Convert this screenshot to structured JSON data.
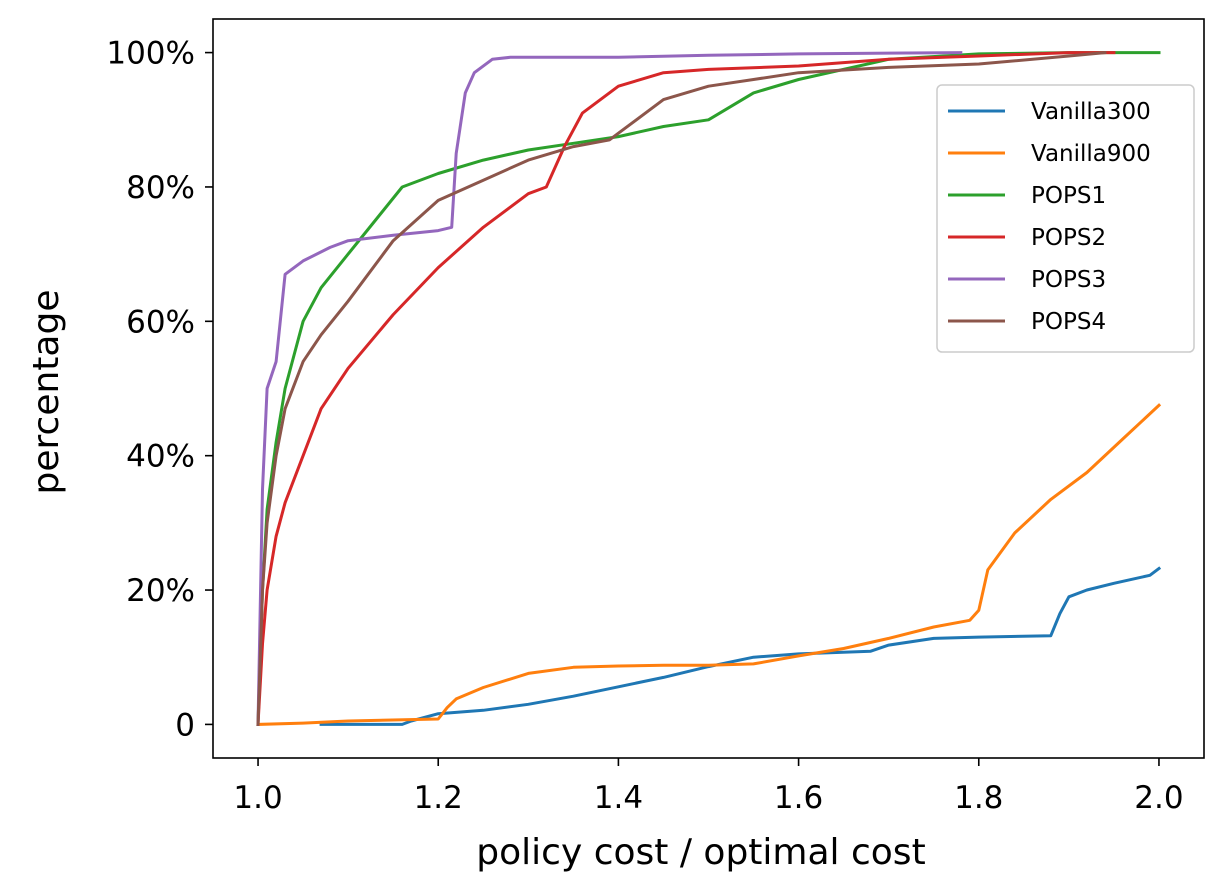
{
  "chart_data": {
    "type": "line",
    "title": "",
    "xlabel": "policy cost / optimal cost",
    "ylabel": "percentage",
    "xlim": [
      0.95,
      2.05
    ],
    "ylim": [
      -5,
      105
    ],
    "x_ticks": [
      1.0,
      1.2,
      1.4,
      1.6,
      1.8,
      2.0
    ],
    "x_tick_labels": [
      "1.0",
      "1.2",
      "1.4",
      "1.6",
      "1.8",
      "2.0"
    ],
    "y_ticks": [
      0,
      20,
      40,
      60,
      80,
      100
    ],
    "y_tick_labels": [
      "0",
      "20%",
      "40%",
      "60%",
      "80%",
      "100%"
    ],
    "grid": false,
    "legend_position": "upper-right",
    "series": [
      {
        "name": "Vanilla300",
        "color": "#1f77b4",
        "x": [
          1.07,
          1.16,
          1.17,
          1.2,
          1.25,
          1.3,
          1.35,
          1.4,
          1.45,
          1.5,
          1.55,
          1.6,
          1.68,
          1.7,
          1.75,
          1.8,
          1.88,
          1.89,
          1.9,
          1.92,
          1.95,
          1.99,
          2.0
        ],
        "y": [
          0,
          0,
          0.5,
          1.6,
          2.1,
          3.0,
          4.2,
          5.6,
          7.0,
          8.6,
          10.0,
          10.5,
          10.9,
          11.8,
          12.8,
          13.0,
          13.2,
          16.5,
          19.0,
          20.0,
          21.0,
          22.2,
          23.2
        ]
      },
      {
        "name": "Vanilla900",
        "color": "#ff7f0e",
        "x": [
          1.0,
          1.05,
          1.1,
          1.2,
          1.21,
          1.22,
          1.25,
          1.3,
          1.35,
          1.4,
          1.45,
          1.5,
          1.55,
          1.6,
          1.65,
          1.7,
          1.75,
          1.79,
          1.8,
          1.81,
          1.84,
          1.88,
          1.92,
          1.96,
          2.0
        ],
        "y": [
          0,
          0.2,
          0.5,
          0.8,
          2.5,
          3.8,
          5.5,
          7.6,
          8.5,
          8.7,
          8.8,
          8.8,
          9.0,
          10.2,
          11.3,
          12.8,
          14.5,
          15.5,
          17.0,
          23.0,
          28.5,
          33.5,
          37.5,
          42.5,
          47.5
        ]
      },
      {
        "name": "POPS1",
        "color": "#2ca02c",
        "x": [
          1.0,
          1.005,
          1.01,
          1.02,
          1.03,
          1.04,
          1.05,
          1.07,
          1.1,
          1.13,
          1.16,
          1.2,
          1.25,
          1.3,
          1.35,
          1.4,
          1.45,
          1.5,
          1.55,
          1.6,
          1.65,
          1.7,
          1.8,
          1.9,
          2.0
        ],
        "y": [
          0,
          20,
          32,
          42,
          50,
          55,
          60,
          65,
          70,
          75,
          80,
          82,
          84,
          85.5,
          86.5,
          87.5,
          89,
          90,
          94,
          96,
          97.5,
          99,
          99.8,
          100,
          100
        ]
      },
      {
        "name": "POPS2",
        "color": "#d62728",
        "x": [
          1.0,
          1.005,
          1.01,
          1.02,
          1.03,
          1.05,
          1.07,
          1.1,
          1.15,
          1.2,
          1.25,
          1.3,
          1.32,
          1.34,
          1.36,
          1.4,
          1.45,
          1.5,
          1.6,
          1.7,
          1.8,
          1.9,
          1.95
        ],
        "y": [
          0,
          12,
          20,
          28,
          33,
          40,
          47,
          53,
          61,
          68,
          74,
          79,
          80,
          86,
          91,
          95,
          97,
          97.5,
          98,
          99,
          99.5,
          100,
          100
        ]
      },
      {
        "name": "POPS3",
        "color": "#9467bd",
        "x": [
          1.0,
          1.005,
          1.01,
          1.02,
          1.03,
          1.05,
          1.08,
          1.1,
          1.15,
          1.2,
          1.215,
          1.22,
          1.23,
          1.24,
          1.26,
          1.28,
          1.3,
          1.4,
          1.5,
          1.6,
          1.78
        ],
        "y": [
          0,
          35,
          50,
          54,
          67,
          69,
          71,
          72,
          72.8,
          73.5,
          74,
          85,
          94,
          97,
          99,
          99.3,
          99.3,
          99.3,
          99.6,
          99.8,
          100
        ]
      },
      {
        "name": "POPS4",
        "color": "#8c564b",
        "x": [
          1.0,
          1.005,
          1.01,
          1.02,
          1.03,
          1.05,
          1.07,
          1.1,
          1.15,
          1.2,
          1.25,
          1.3,
          1.35,
          1.39,
          1.4,
          1.45,
          1.5,
          1.55,
          1.6,
          1.7,
          1.8,
          1.9,
          1.94
        ],
        "y": [
          0,
          20,
          30,
          40,
          47,
          54,
          58,
          63,
          72,
          78,
          81,
          84,
          86,
          87,
          88,
          93,
          95,
          96,
          97,
          97.8,
          98.3,
          99.5,
          100
        ]
      }
    ]
  }
}
